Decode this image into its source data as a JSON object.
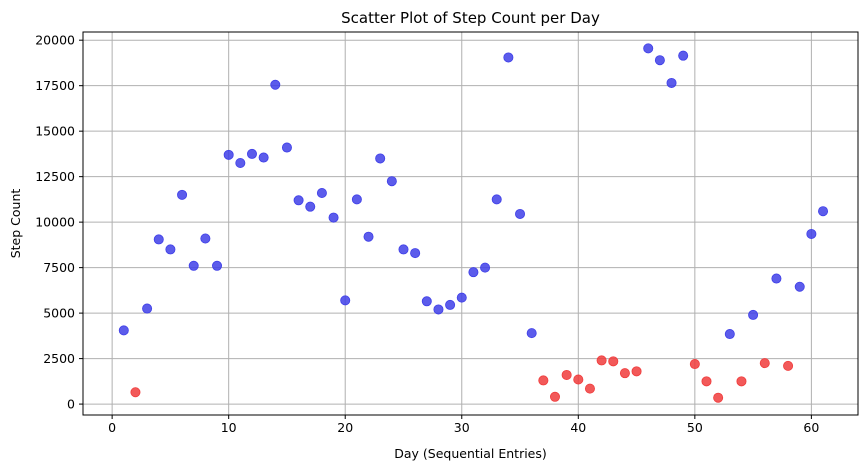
{
  "chart_data": {
    "type": "scatter",
    "title": "Scatter Plot of Step Count per Day",
    "xlabel": "Day (Sequential Entries)",
    "ylabel": "Step Count",
    "xlim": [
      -2.5,
      64
    ],
    "ylim": [
      -600,
      20450
    ],
    "xticks": [
      0,
      10,
      20,
      30,
      40,
      50,
      60
    ],
    "yticks": [
      0,
      2500,
      5000,
      7500,
      10000,
      12500,
      15000,
      17500,
      20000
    ],
    "grid": true,
    "colors": {
      "high": "#3f3fe8",
      "low": "#f03c3c"
    },
    "points": [
      {
        "x": 1,
        "y": 4050,
        "group": "high"
      },
      {
        "x": 2,
        "y": 650,
        "group": "low"
      },
      {
        "x": 3,
        "y": 5250,
        "group": "high"
      },
      {
        "x": 4,
        "y": 9050,
        "group": "high"
      },
      {
        "x": 5,
        "y": 8500,
        "group": "high"
      },
      {
        "x": 6,
        "y": 11500,
        "group": "high"
      },
      {
        "x": 7,
        "y": 7600,
        "group": "high"
      },
      {
        "x": 8,
        "y": 9100,
        "group": "high"
      },
      {
        "x": 9,
        "y": 7600,
        "group": "high"
      },
      {
        "x": 10,
        "y": 13700,
        "group": "high"
      },
      {
        "x": 11,
        "y": 13250,
        "group": "high"
      },
      {
        "x": 12,
        "y": 13750,
        "group": "high"
      },
      {
        "x": 13,
        "y": 13550,
        "group": "high"
      },
      {
        "x": 14,
        "y": 17550,
        "group": "high"
      },
      {
        "x": 15,
        "y": 14100,
        "group": "high"
      },
      {
        "x": 16,
        "y": 11200,
        "group": "high"
      },
      {
        "x": 17,
        "y": 10850,
        "group": "high"
      },
      {
        "x": 18,
        "y": 11600,
        "group": "high"
      },
      {
        "x": 19,
        "y": 10250,
        "group": "high"
      },
      {
        "x": 20,
        "y": 5700,
        "group": "high"
      },
      {
        "x": 21,
        "y": 11250,
        "group": "high"
      },
      {
        "x": 22,
        "y": 9200,
        "group": "high"
      },
      {
        "x": 23,
        "y": 13500,
        "group": "high"
      },
      {
        "x": 24,
        "y": 12250,
        "group": "high"
      },
      {
        "x": 25,
        "y": 8500,
        "group": "high"
      },
      {
        "x": 26,
        "y": 8300,
        "group": "high"
      },
      {
        "x": 27,
        "y": 5650,
        "group": "high"
      },
      {
        "x": 28,
        "y": 5200,
        "group": "high"
      },
      {
        "x": 29,
        "y": 5450,
        "group": "high"
      },
      {
        "x": 30,
        "y": 5850,
        "group": "high"
      },
      {
        "x": 31,
        "y": 7250,
        "group": "high"
      },
      {
        "x": 32,
        "y": 7500,
        "group": "high"
      },
      {
        "x": 33,
        "y": 11250,
        "group": "high"
      },
      {
        "x": 34,
        "y": 19050,
        "group": "high"
      },
      {
        "x": 35,
        "y": 10450,
        "group": "high"
      },
      {
        "x": 36,
        "y": 3900,
        "group": "high"
      },
      {
        "x": 37,
        "y": 1300,
        "group": "low"
      },
      {
        "x": 38,
        "y": 400,
        "group": "low"
      },
      {
        "x": 39,
        "y": 1600,
        "group": "low"
      },
      {
        "x": 40,
        "y": 1350,
        "group": "low"
      },
      {
        "x": 41,
        "y": 850,
        "group": "low"
      },
      {
        "x": 42,
        "y": 2400,
        "group": "low"
      },
      {
        "x": 43,
        "y": 2350,
        "group": "low"
      },
      {
        "x": 44,
        "y": 1700,
        "group": "low"
      },
      {
        "x": 45,
        "y": 1800,
        "group": "low"
      },
      {
        "x": 46,
        "y": 19550,
        "group": "high"
      },
      {
        "x": 47,
        "y": 18900,
        "group": "high"
      },
      {
        "x": 48,
        "y": 17650,
        "group": "high"
      },
      {
        "x": 49,
        "y": 19150,
        "group": "high"
      },
      {
        "x": 50,
        "y": 2200,
        "group": "low"
      },
      {
        "x": 51,
        "y": 1250,
        "group": "low"
      },
      {
        "x": 52,
        "y": 350,
        "group": "low"
      },
      {
        "x": 53,
        "y": 3850,
        "group": "high"
      },
      {
        "x": 54,
        "y": 1250,
        "group": "low"
      },
      {
        "x": 55,
        "y": 4900,
        "group": "high"
      },
      {
        "x": 56,
        "y": 2250,
        "group": "low"
      },
      {
        "x": 57,
        "y": 6900,
        "group": "high"
      },
      {
        "x": 58,
        "y": 2100,
        "group": "low"
      },
      {
        "x": 59,
        "y": 6450,
        "group": "high"
      },
      {
        "x": 60,
        "y": 9350,
        "group": "high"
      },
      {
        "x": 61,
        "y": 10600,
        "group": "high"
      }
    ]
  }
}
